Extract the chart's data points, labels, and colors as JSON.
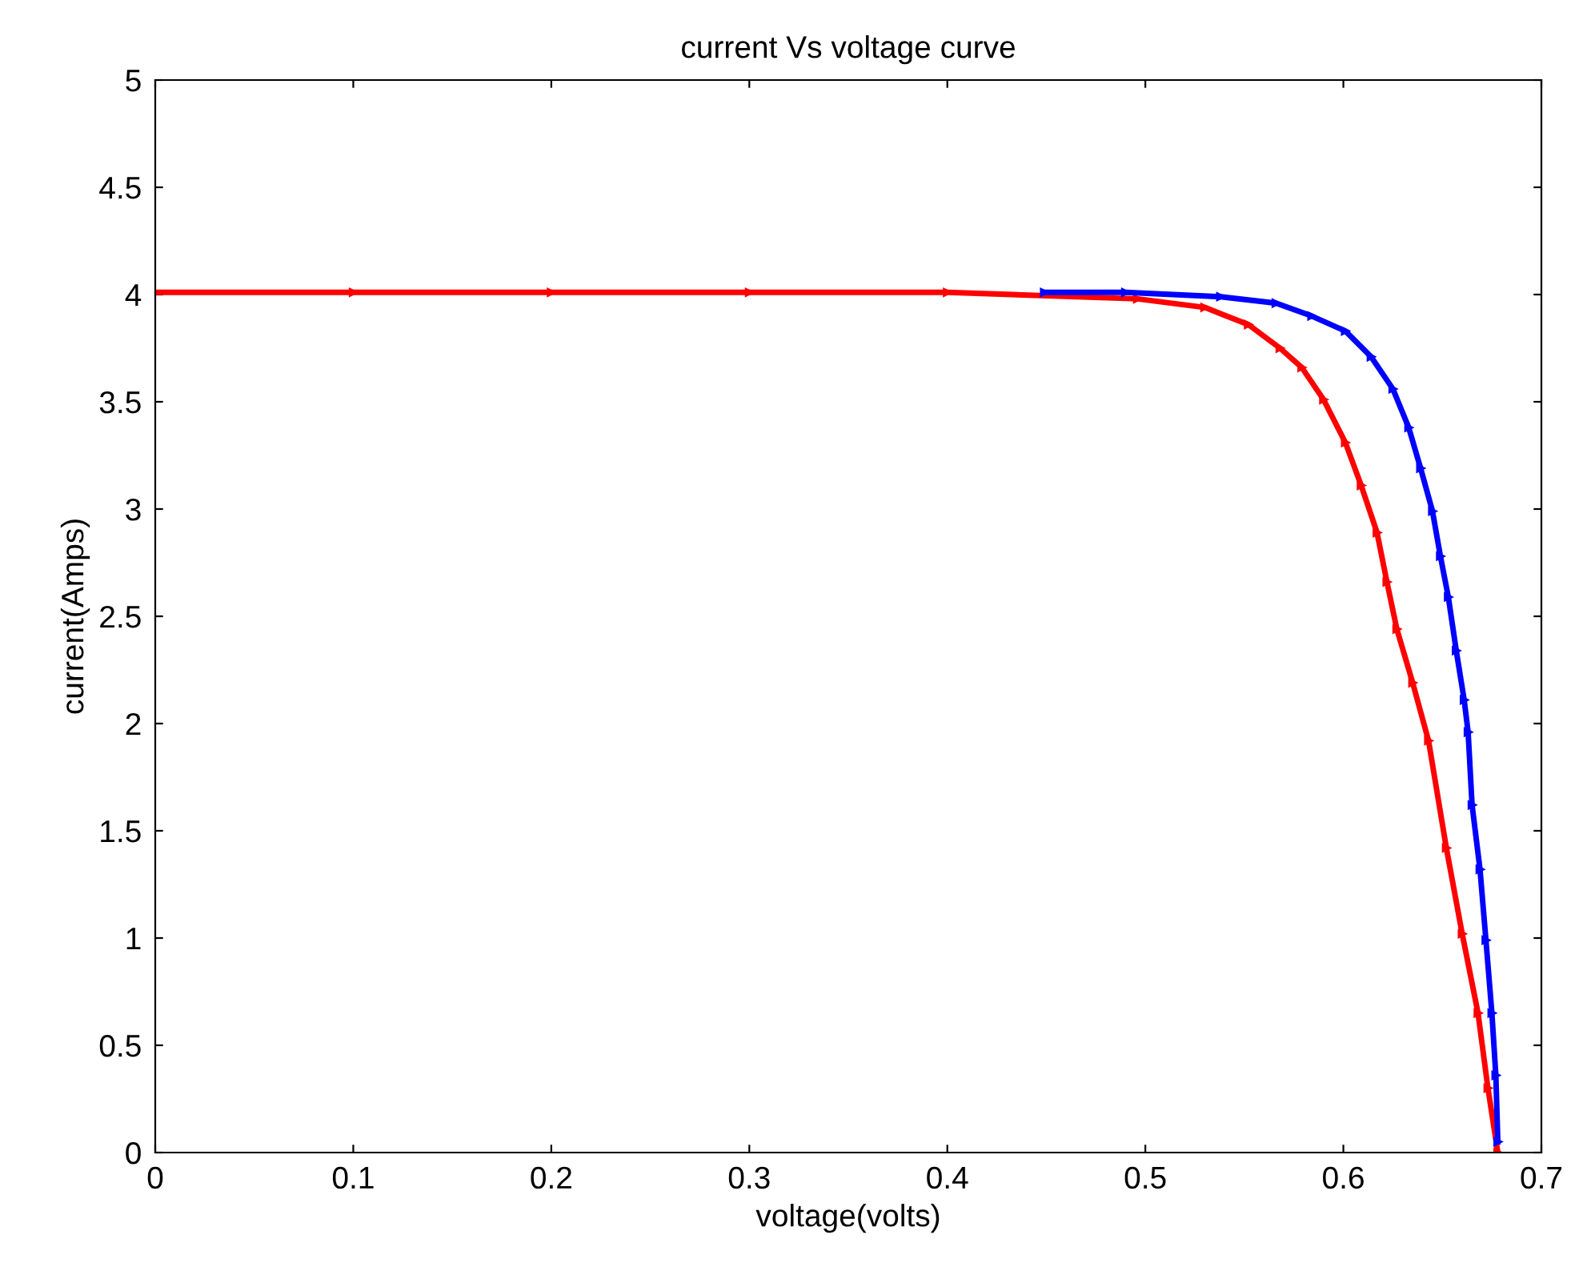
{
  "chart_data": {
    "type": "line",
    "title": "current Vs voltage curve",
    "xlabel": "voltage(volts)",
    "ylabel": "current(Amps)",
    "xlim": [
      0,
      0.7
    ],
    "xticks": [
      0,
      0.1,
      0.2,
      0.3,
      0.4,
      0.5,
      0.6,
      0.7
    ],
    "ylim": [
      0,
      5
    ],
    "yticks": [
      0,
      0.5,
      1,
      1.5,
      2,
      2.5,
      3,
      3.5,
      4,
      4.5,
      5
    ],
    "grid": false,
    "legend": false,
    "marker": "triangle",
    "line_style": "solid",
    "series": [
      {
        "color": "#ff0000",
        "x": [
          0,
          0.1,
          0.2,
          0.3,
          0.4,
          0.496,
          0.53,
          0.552,
          0.568,
          0.579,
          0.59,
          0.601,
          0.609,
          0.617,
          0.622,
          0.627,
          0.635,
          0.643,
          0.652,
          0.66,
          0.668,
          0.673,
          0.678
        ],
        "values": [
          4.01,
          4.01,
          4.01,
          4.01,
          4.01,
          3.98,
          3.94,
          3.86,
          3.75,
          3.66,
          3.51,
          3.31,
          3.11,
          2.89,
          2.66,
          2.44,
          2.19,
          1.92,
          1.42,
          1.02,
          0.65,
          0.3,
          0.0
        ]
      },
      {
        "color": "#0000ff",
        "x": [
          0.449,
          0.49,
          0.538,
          0.566,
          0.584,
          0.601,
          0.614,
          0.625,
          0.633,
          0.639,
          0.645,
          0.649,
          0.653,
          0.657,
          0.661,
          0.663,
          0.665,
          0.669,
          0.672,
          0.675,
          0.677,
          0.678
        ],
        "values": [
          4.01,
          4.01,
          3.99,
          3.96,
          3.9,
          3.83,
          3.71,
          3.56,
          3.38,
          3.19,
          2.99,
          2.78,
          2.59,
          2.34,
          2.11,
          1.96,
          1.62,
          1.32,
          0.99,
          0.65,
          0.36,
          0.05
        ]
      }
    ]
  }
}
